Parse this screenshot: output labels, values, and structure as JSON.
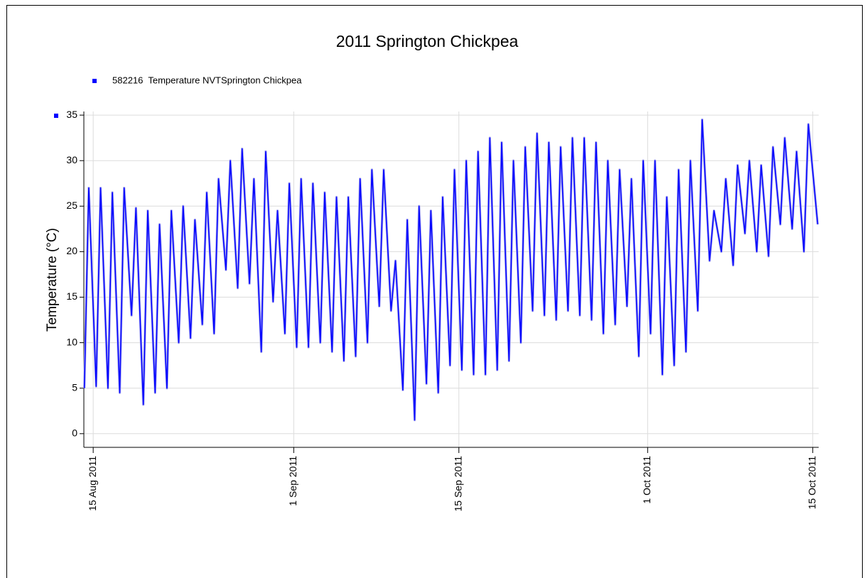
{
  "chart_data": {
    "type": "line",
    "title": "2011 Springton Chickpea",
    "y_label": "Temperature (°C)",
    "series": [
      {
        "name": "582216  Temperature NVTSprington Chickpea",
        "color": "#0000ff",
        "halo_color": "#b8b8f0",
        "x": [
          "2011-08-14 06:00",
          "2011-08-14 15:00",
          "2011-08-15 06:00",
          "2011-08-15 15:00",
          "2011-08-16 06:00",
          "2011-08-16 15:00",
          "2011-08-17 06:00",
          "2011-08-17 15:00",
          "2011-08-18 06:00",
          "2011-08-18 15:00",
          "2011-08-19 06:00",
          "2011-08-19 15:00",
          "2011-08-20 06:00",
          "2011-08-20 15:00",
          "2011-08-21 06:00",
          "2011-08-21 15:00",
          "2011-08-22 06:00",
          "2011-08-22 15:00",
          "2011-08-23 06:00",
          "2011-08-23 15:00",
          "2011-08-24 06:00",
          "2011-08-24 15:00",
          "2011-08-25 06:00",
          "2011-08-25 15:00",
          "2011-08-26 06:00",
          "2011-08-26 15:00",
          "2011-08-27 06:00",
          "2011-08-27 15:00",
          "2011-08-28 06:00",
          "2011-08-28 15:00",
          "2011-08-29 06:00",
          "2011-08-29 15:00",
          "2011-08-30 06:00",
          "2011-08-30 15:00",
          "2011-08-31 06:00",
          "2011-08-31 15:00",
          "2011-09-01 06:00",
          "2011-09-01 15:00",
          "2011-09-02 06:00",
          "2011-09-02 15:00",
          "2011-09-03 06:00",
          "2011-09-03 15:00",
          "2011-09-04 06:00",
          "2011-09-04 15:00",
          "2011-09-05 06:00",
          "2011-09-05 15:00",
          "2011-09-06 06:00",
          "2011-09-06 15:00",
          "2011-09-07 06:00",
          "2011-09-07 15:00",
          "2011-09-08 06:00",
          "2011-09-08 15:00",
          "2011-09-09 06:00",
          "2011-09-09 15:00",
          "2011-09-10 06:00",
          "2011-09-10 15:00",
          "2011-09-11 06:00",
          "2011-09-11 15:00",
          "2011-09-12 06:00",
          "2011-09-12 15:00",
          "2011-09-13 06:00",
          "2011-09-13 15:00",
          "2011-09-14 06:00",
          "2011-09-14 15:00",
          "2011-09-15 06:00",
          "2011-09-15 15:00",
          "2011-09-16 06:00",
          "2011-09-16 15:00",
          "2011-09-17 06:00",
          "2011-09-17 15:00",
          "2011-09-18 06:00",
          "2011-09-18 15:00",
          "2011-09-19 06:00",
          "2011-09-19 15:00",
          "2011-09-20 06:00",
          "2011-09-20 15:00",
          "2011-09-21 06:00",
          "2011-09-21 15:00",
          "2011-09-22 06:00",
          "2011-09-22 15:00",
          "2011-09-23 06:00",
          "2011-09-23 15:00",
          "2011-09-24 06:00",
          "2011-09-24 15:00",
          "2011-09-25 06:00",
          "2011-09-25 15:00",
          "2011-09-26 06:00",
          "2011-09-26 15:00",
          "2011-09-27 06:00",
          "2011-09-27 15:00",
          "2011-09-28 06:00",
          "2011-09-28 15:00",
          "2011-09-29 06:00",
          "2011-09-29 15:00",
          "2011-09-30 06:00",
          "2011-09-30 15:00",
          "2011-10-01 06:00",
          "2011-10-01 15:00",
          "2011-10-02 06:00",
          "2011-10-02 15:00",
          "2011-10-03 06:00",
          "2011-10-03 15:00",
          "2011-10-04 06:00",
          "2011-10-04 15:00",
          "2011-10-05 06:00",
          "2011-10-05 15:00",
          "2011-10-06 06:00",
          "2011-10-06 15:00",
          "2011-10-07 06:00",
          "2011-10-07 15:00",
          "2011-10-08 06:00",
          "2011-10-08 15:00",
          "2011-10-09 06:00",
          "2011-10-09 15:00",
          "2011-10-10 06:00",
          "2011-10-10 15:00",
          "2011-10-11 06:00",
          "2011-10-11 15:00",
          "2011-10-12 06:00",
          "2011-10-12 15:00",
          "2011-10-13 06:00",
          "2011-10-13 15:00",
          "2011-10-14 06:00",
          "2011-10-14 15:00",
          "2011-10-15 10:00"
        ],
        "values": [
          5,
          27,
          5.2,
          27,
          5,
          26.5,
          4.5,
          27,
          13,
          24.8,
          3.2,
          24.5,
          4.5,
          23,
          5,
          24.5,
          10,
          25,
          10.5,
          23.5,
          12,
          26.5,
          11,
          28,
          18,
          30,
          16,
          31.3,
          16.5,
          28,
          9,
          31,
          14.5,
          24.5,
          11,
          27.5,
          9.5,
          28,
          9.5,
          27.5,
          10,
          26.5,
          9,
          26,
          8,
          26,
          8.5,
          28,
          10,
          29,
          14,
          29,
          13.5,
          19,
          4.8,
          23.5,
          1.5,
          25,
          5.5,
          24.5,
          4.5,
          26,
          7.5,
          29,
          7,
          30,
          6.5,
          31,
          6.5,
          32.5,
          7,
          32,
          8,
          30,
          10,
          31.5,
          13.5,
          33,
          13,
          32,
          12.5,
          31.5,
          13.5,
          32.5,
          13,
          32.5,
          12.5,
          32,
          11,
          30,
          12,
          29,
          14,
          28,
          8.5,
          30,
          11,
          30,
          6.5,
          26,
          7.5,
          29,
          9,
          30,
          13.5,
          34.5,
          19,
          24.5,
          20,
          28,
          18.5,
          29.5,
          22,
          30,
          20,
          29.5,
          19.5,
          31.5,
          23,
          32.5,
          22.5,
          31,
          20,
          34,
          23
        ]
      }
    ],
    "xlim": [
      "2011-08-14 05:00",
      "2011-10-15 12:00"
    ],
    "xticks": [
      {
        "value": "2011-08-15",
        "label": "15 Aug 2011"
      },
      {
        "value": "2011-09-01",
        "label": "1 Sep 2011"
      },
      {
        "value": "2011-09-15",
        "label": "15 Sep 2011"
      },
      {
        "value": "2011-10-01",
        "label": "1 Oct 2011"
      },
      {
        "value": "2011-10-15",
        "label": "15 Oct 2011"
      }
    ],
    "ylim": [
      -1.5,
      35.4
    ],
    "yticks": [
      0,
      5,
      10,
      15,
      20,
      25,
      30,
      35
    ],
    "grid": true,
    "legend": "top-left"
  }
}
